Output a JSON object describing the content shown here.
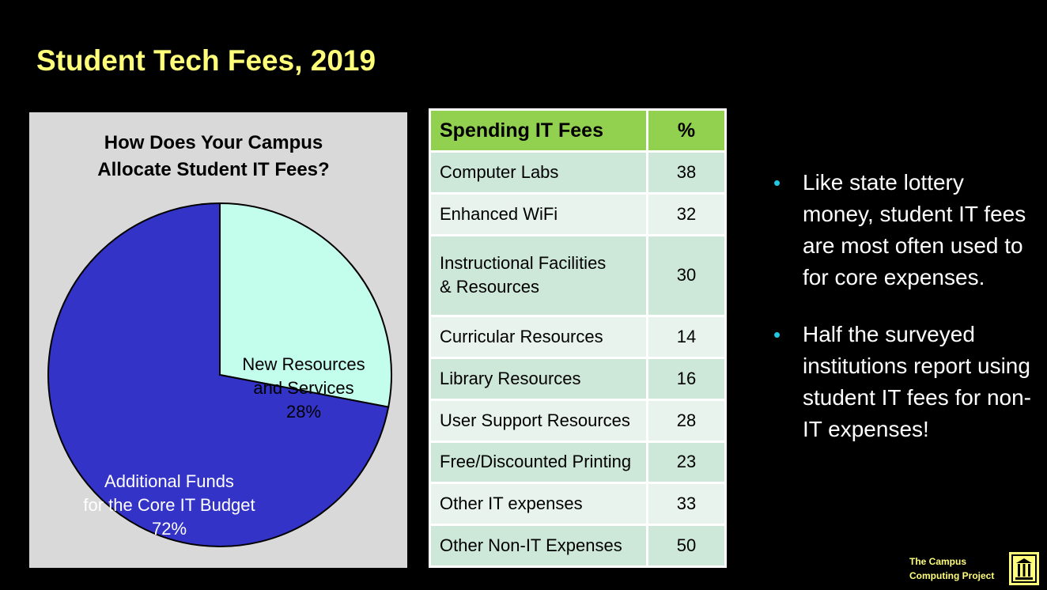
{
  "slide": {
    "title": "Student Tech Fees, 2019"
  },
  "chart_data": [
    {
      "type": "pie",
      "title": "How Does Your Campus Allocate Student IT Fees?",
      "title_lines": [
        "How Does Your Campus",
        "Allocate Student IT Fees?"
      ],
      "slices": [
        {
          "name": "New Resources and Services",
          "label_lines": [
            "New Resources",
            "and Services",
            "28%"
          ],
          "value": 28,
          "color": "#c3fdec"
        },
        {
          "name": "Additional Funds for the Core IT Budget",
          "label_lines": [
            "Additional Funds",
            "for the Core IT Budget",
            "72%"
          ],
          "value": 72,
          "color": "#3333c8"
        }
      ],
      "background": "#d9d9d9"
    },
    {
      "type": "table",
      "columns": [
        "Spending IT Fees",
        "%"
      ],
      "rows": [
        {
          "label": "Computer Labs",
          "value": "38"
        },
        {
          "label": "Enhanced WiFi",
          "value": "32"
        },
        {
          "label": "Instructional Facilities\n& Resources",
          "label_lines": [
            "Instructional Facilities",
            "& Resources"
          ],
          "value": "30"
        },
        {
          "label": "Curricular Resources",
          "value": "14"
        },
        {
          "label": "Library Resources",
          "value": "16"
        },
        {
          "label": "User Support Resources",
          "value": "28"
        },
        {
          "label": "Free/Discounted Printing",
          "value": "23"
        },
        {
          "label": "Other IT expenses",
          "value": "33"
        },
        {
          "label": "Other Non-IT Expenses",
          "value": "50"
        }
      ],
      "header_color": "#92d050",
      "row_colors": [
        "#cde7d8",
        "#e7f3ec"
      ]
    }
  ],
  "bullets": [
    "Like state lottery money, student IT fees are most often used to for core expenses.",
    "Half the surveyed institutions report using student IT fees for non-IT expenses!"
  ],
  "footer": {
    "logo_line1": "The Campus",
    "logo_line2": "Computing Project",
    "logo_icon": "campus-building-icon"
  },
  "colors": {
    "title": "#ffff7a",
    "bullet_dot": "#21c8e0",
    "background": "#000000"
  }
}
